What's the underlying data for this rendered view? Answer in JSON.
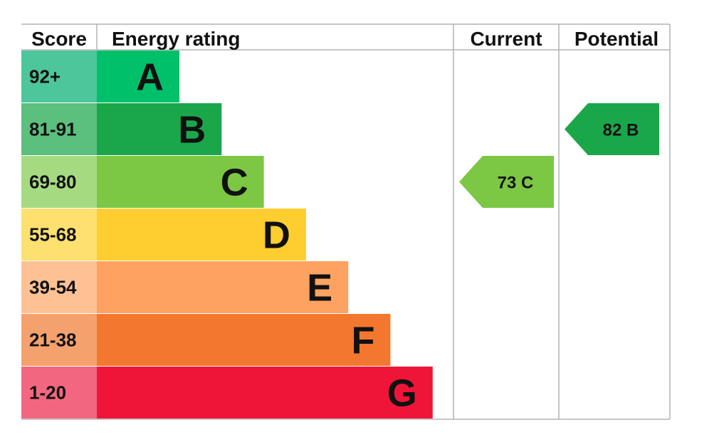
{
  "chart_data": {
    "type": "bar",
    "title": "",
    "headers": {
      "score": "Score",
      "rating": "Energy rating",
      "current": "Current",
      "potential": "Potential"
    },
    "bands": [
      {
        "letter": "A",
        "range": "92+",
        "color": "#00c06a",
        "light": "#4cc69a"
      },
      {
        "letter": "B",
        "range": "81-91",
        "color": "#1aa74a",
        "light": "#5bbf7d"
      },
      {
        "letter": "C",
        "range": "69-80",
        "color": "#7cc744",
        "light": "#a6da81"
      },
      {
        "letter": "D",
        "range": "55-68",
        "color": "#fecd2f",
        "light": "#fde06f"
      },
      {
        "letter": "E",
        "range": "39-54",
        "color": "#fda260",
        "light": "#fdc194"
      },
      {
        "letter": "F",
        "range": "21-38",
        "color": "#f3772e",
        "light": "#f5a16d"
      },
      {
        "letter": "G",
        "range": "1-20",
        "color": "#ef1538",
        "light": "#f3667f"
      }
    ],
    "current": {
      "score": 73,
      "letter": "C",
      "label": "73  C",
      "color": "#7cc744"
    },
    "potential": {
      "score": 82,
      "letter": "B",
      "label": "82  B",
      "color": "#1aa74a"
    }
  }
}
